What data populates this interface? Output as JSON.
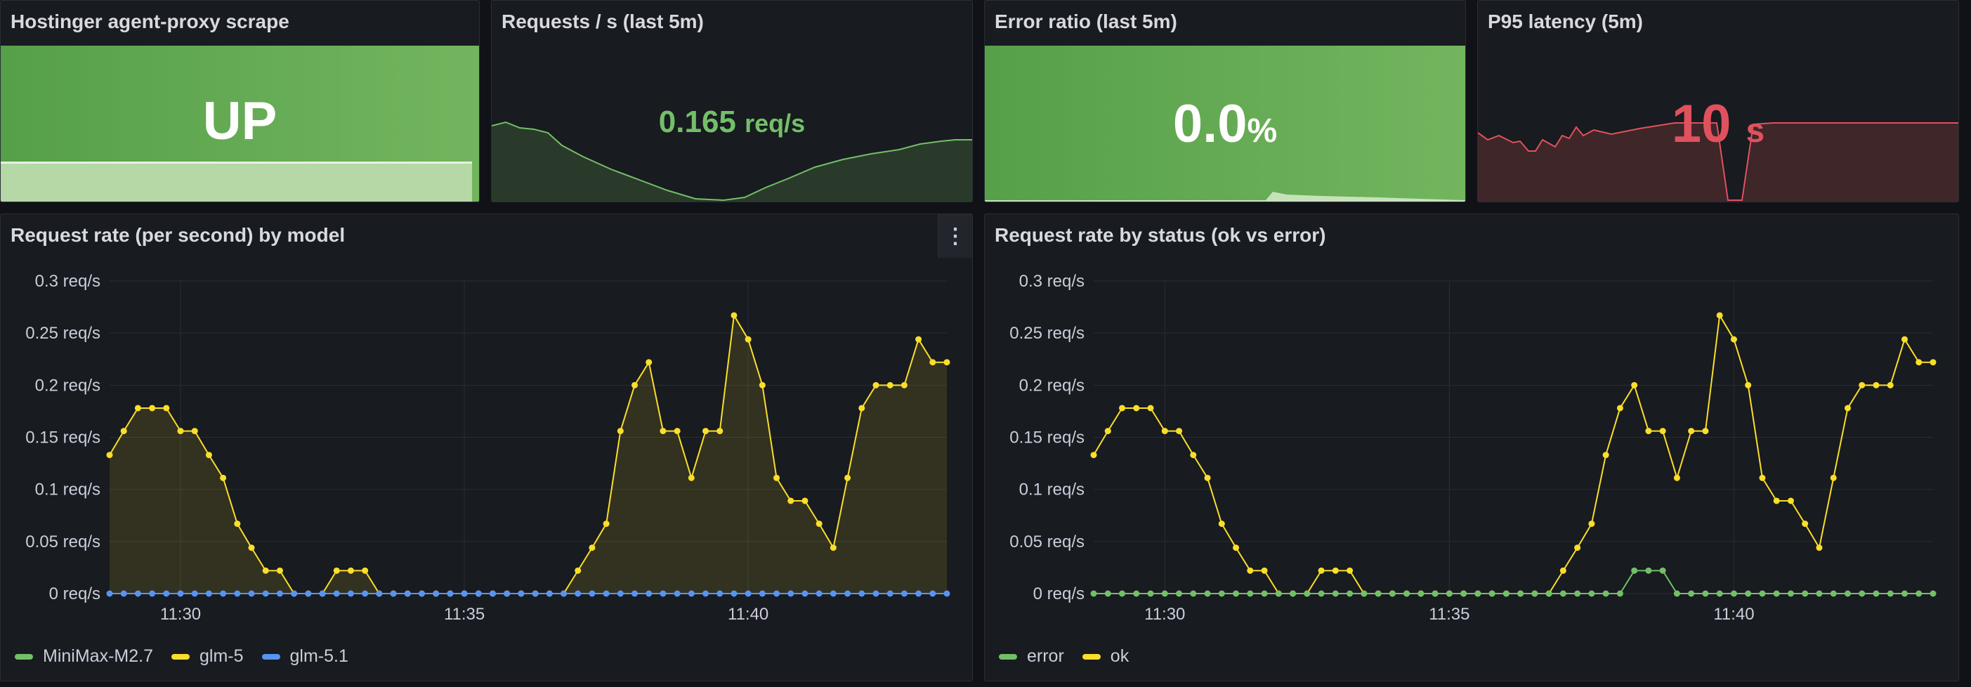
{
  "stat_panels": [
    {
      "title": "Hostinger agent-proxy scrape",
      "value": "UP",
      "unit": "",
      "color": "#73bf69",
      "bg": "#5a9e4f"
    },
    {
      "title": "Requests / s (last 5m)",
      "value": "0.165",
      "unit": "req/s",
      "color": "#73bf69",
      "bg": "#22271f"
    },
    {
      "title": "Error ratio (last 5m)",
      "value": "0.0",
      "unit": "%",
      "color": "#ffffff",
      "bg": "#5a9e4f"
    },
    {
      "title": "P95 latency (5m)",
      "value": "10",
      "unit": "s",
      "color": "#e0515e",
      "bg": "#3a2529"
    }
  ],
  "timeseries": [
    {
      "title": "Request rate (per second) by model",
      "menu_icon": "kebab-menu-icon",
      "legend": [
        {
          "name": "MiniMax-M2.7",
          "color": "#73bf69"
        },
        {
          "name": "glm-5",
          "color": "#fade2a"
        },
        {
          "name": "glm-5.1",
          "color": "#5794f2"
        }
      ]
    },
    {
      "title": "Request rate by status (ok vs error)",
      "legend": [
        {
          "name": "error",
          "color": "#73bf69"
        },
        {
          "name": "ok",
          "color": "#fade2a"
        }
      ]
    }
  ],
  "chart_data": [
    {
      "type": "line",
      "title": "Request rate (per second) by model",
      "y_ticks": [
        "0 req/s",
        "0.05 req/s",
        "0.1 req/s",
        "0.15 req/s",
        "0.2 req/s",
        "0.25 req/s",
        "0.3 req/s"
      ],
      "x_ticks": [
        "11:30",
        "11:35",
        "11:40"
      ],
      "ylim": [
        0,
        0.3
      ],
      "x_range_minutes": [
        11.2,
        13.3
      ],
      "series": [
        {
          "name": "glm-5",
          "color": "#fade2a",
          "fill": true,
          "values": [
            0.133,
            0.156,
            0.178,
            0.178,
            0.178,
            0.156,
            0.156,
            0.133,
            0.111,
            0.067,
            0.044,
            0.022,
            0.022,
            0,
            0,
            0,
            0.022,
            0.022,
            0.022,
            0,
            0,
            0,
            0,
            0,
            0,
            0,
            0,
            0,
            0,
            0,
            0,
            0,
            0,
            0.022,
            0.044,
            0.067,
            0.156,
            0.2,
            0.222,
            0.156,
            0.156,
            0.111,
            0.156,
            0.156,
            0.267,
            0.244,
            0.2,
            0.111,
            0.089,
            0.089,
            0.067,
            0.044,
            0.111,
            0.178,
            0.2,
            0.2,
            0.2,
            0.244,
            0.222,
            0.222
          ]
        },
        {
          "name": "glm-5.1",
          "color": "#5794f2",
          "fill": false,
          "values": [
            0,
            0,
            0,
            0,
            0,
            0,
            0,
            0,
            0,
            0,
            0,
            0,
            0,
            0,
            0,
            0,
            0,
            0,
            0,
            0,
            0,
            0,
            0,
            0,
            0,
            0,
            0,
            0,
            0,
            0,
            0,
            0,
            0,
            0,
            0,
            0,
            0,
            0,
            0,
            0,
            0,
            0,
            0,
            0,
            0,
            0,
            0,
            0,
            0,
            0,
            0,
            0,
            0,
            0,
            0,
            0,
            0,
            0,
            0,
            0
          ]
        }
      ],
      "grid": true,
      "legend_position": "bottom-left"
    },
    {
      "type": "line",
      "title": "Request rate by status (ok vs error)",
      "y_ticks": [
        "0 req/s",
        "0.05 req/s",
        "0.1 req/s",
        "0.15 req/s",
        "0.2 req/s",
        "0.25 req/s",
        "0.3 req/s"
      ],
      "x_ticks": [
        "11:30",
        "11:35",
        "11:40"
      ],
      "ylim": [
        0,
        0.3
      ],
      "series": [
        {
          "name": "ok",
          "color": "#fade2a",
          "fill": false,
          "values": [
            0.133,
            0.156,
            0.178,
            0.178,
            0.178,
            0.156,
            0.156,
            0.133,
            0.111,
            0.067,
            0.044,
            0.022,
            0.022,
            0,
            0,
            0,
            0.022,
            0.022,
            0.022,
            0,
            0,
            0,
            0,
            0,
            0,
            0,
            0,
            0,
            0,
            0,
            0,
            0,
            0,
            0.022,
            0.044,
            0.067,
            0.133,
            0.178,
            0.2,
            0.156,
            0.156,
            0.111,
            0.156,
            0.156,
            0.267,
            0.244,
            0.2,
            0.111,
            0.089,
            0.089,
            0.067,
            0.044,
            0.111,
            0.178,
            0.2,
            0.2,
            0.2,
            0.244,
            0.222,
            0.222
          ]
        },
        {
          "name": "error",
          "color": "#73bf69",
          "fill": false,
          "values": [
            0,
            0,
            0,
            0,
            0,
            0,
            0,
            0,
            0,
            0,
            0,
            0,
            0,
            0,
            0,
            0,
            0,
            0,
            0,
            0,
            0,
            0,
            0,
            0,
            0,
            0,
            0,
            0,
            0,
            0,
            0,
            0,
            0,
            0,
            0,
            0,
            0,
            0,
            0.022,
            0.022,
            0.022,
            0,
            0,
            0,
            0,
            0,
            0,
            0,
            0,
            0,
            0,
            0,
            0,
            0,
            0,
            0,
            0,
            0,
            0,
            0
          ]
        }
      ],
      "grid": true,
      "legend_position": "bottom-left"
    }
  ]
}
